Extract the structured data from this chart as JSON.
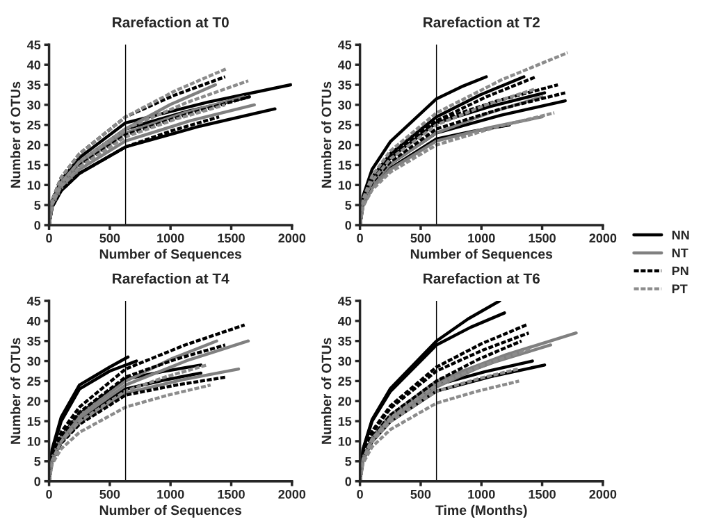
{
  "chart_data": [
    {
      "type": "line",
      "title": "Rarefaction at T0",
      "xlabel": "Number of Sequences",
      "ylabel": "Number of OTUs",
      "xlim": [
        0,
        2000
      ],
      "xticks": [
        0,
        500,
        1000,
        1500,
        2000
      ],
      "ylim": [
        0,
        45
      ],
      "yticks": [
        0,
        5,
        10,
        15,
        20,
        25,
        30,
        35,
        40,
        45
      ],
      "grid": false,
      "legend": "right",
      "ref_lines": [
        {
          "axis": "x",
          "value": 630,
          "color": "#000000"
        }
      ],
      "series": [
        {
          "name": "NN",
          "color": "#000000",
          "line_style": "solid",
          "x": [
            0,
            25,
            100,
            250,
            630,
            1310,
            1990
          ],
          "values": [
            0,
            5.9,
            11.2,
            16.8,
            25.5,
            30.7,
            35
          ]
        },
        {
          "color": "#000000",
          "line_style": "solid",
          "x": [
            0,
            25,
            100,
            250,
            630,
            1245,
            1860
          ],
          "values": [
            0,
            4.5,
            8.6,
            12.9,
            19.5,
            24.7,
            29
          ]
        },
        {
          "color": "#000000",
          "line_style": "solid",
          "x": [
            0,
            25,
            100,
            250,
            630,
            1140,
            1650
          ],
          "values": [
            0,
            5.5,
            10.6,
            15.8,
            24,
            28.4,
            32
          ]
        },
        {
          "name": "NT",
          "color": "#808080",
          "line_style": "solid",
          "x": [
            0,
            25,
            100,
            250,
            630,
            1000,
            1370
          ],
          "values": [
            0,
            5.5,
            10.6,
            15.8,
            24,
            30.1,
            35
          ]
        },
        {
          "color": "#808080",
          "line_style": "solid",
          "x": [
            0,
            25,
            100,
            250,
            630,
            1160,
            1690
          ],
          "values": [
            0,
            4.8,
            9.2,
            13.9,
            21,
            26,
            30
          ]
        },
        {
          "color": "#808080",
          "line_style": "solid",
          "x": [
            0,
            25,
            100,
            250,
            630,
            1115,
            1600
          ],
          "values": [
            0,
            5.3,
            10.1,
            15.2,
            23,
            28,
            32
          ]
        },
        {
          "name": "PN",
          "color": "#000000",
          "line_style": "dashed",
          "x": [
            0,
            25,
            100,
            250,
            630,
            1040,
            1450
          ],
          "values": [
            0,
            6.2,
            11.9,
            17.8,
            27,
            32.5,
            37
          ]
        },
        {
          "color": "#000000",
          "line_style": "dashed",
          "x": [
            0,
            25,
            100,
            250,
            630,
            1140,
            1650
          ],
          "values": [
            0,
            5.2,
            9.9,
            14.9,
            22.5,
            27.7,
            32
          ]
        },
        {
          "color": "#000000",
          "line_style": "dashed",
          "x": [
            0,
            25,
            100,
            250,
            630,
            1015,
            1400
          ],
          "values": [
            0,
            4.5,
            8.6,
            12.9,
            19.5,
            23.6,
            27
          ]
        },
        {
          "name": "PT",
          "color": "#8c8c8c",
          "line_style": "dashed",
          "x": [
            0,
            25,
            100,
            250,
            630,
            1045,
            1460
          ],
          "values": [
            0,
            6.2,
            11.9,
            17.8,
            27,
            33.6,
            39
          ]
        },
        {
          "color": "#8c8c8c",
          "line_style": "dashed",
          "x": [
            0,
            25,
            100,
            250,
            630,
            1135,
            1640
          ],
          "values": [
            0,
            5.5,
            10.6,
            15.8,
            24,
            30.6,
            36
          ]
        },
        {
          "color": "#8c8c8c",
          "line_style": "dashed",
          "x": [
            0,
            25,
            100,
            250,
            630,
            1040,
            1450
          ],
          "values": [
            0,
            5.1,
            9.7,
            14.5,
            22,
            26.4,
            30
          ]
        }
      ]
    },
    {
      "type": "line",
      "title": "Rarefaction at T2",
      "xlabel": "Number of Sequences",
      "ylabel": "Number of OTUs",
      "xlim": [
        0,
        2000
      ],
      "xticks": [
        0,
        500,
        1000,
        1500,
        2000
      ],
      "ylim": [
        0,
        45
      ],
      "yticks": [
        0,
        5,
        10,
        15,
        20,
        25,
        30,
        35,
        40,
        45
      ],
      "grid": false,
      "ref_lines": [
        {
          "axis": "x",
          "value": 630,
          "color": "#000000"
        }
      ],
      "series": [
        {
          "color": "#000000",
          "line_style": "solid",
          "x": [
            0,
            25,
            100,
            250,
            630,
            835,
            1040
          ],
          "values": [
            0,
            7.2,
            13.9,
            20.8,
            31.5,
            34.5,
            37
          ]
        },
        {
          "color": "#000000",
          "line_style": "solid",
          "x": [
            0,
            25,
            100,
            250,
            630,
            990,
            1350
          ],
          "values": [
            0,
            6.2,
            11.9,
            17.8,
            27,
            32.5,
            37
          ]
        },
        {
          "color": "#000000",
          "line_style": "solid",
          "x": [
            0,
            25,
            100,
            250,
            630,
            1160,
            1690
          ],
          "values": [
            0,
            5.3,
            10.1,
            15.2,
            23,
            27.4,
            31
          ]
        },
        {
          "color": "#000000",
          "line_style": "solid",
          "x": [
            0,
            25,
            100,
            250,
            630,
            930,
            1230
          ],
          "values": [
            0,
            4.9,
            9.5,
            14.2,
            21.5,
            23.4,
            25
          ]
        },
        {
          "color": "#000000",
          "line_style": "solid",
          "x": [
            0,
            25,
            100,
            250,
            630,
            1075,
            1520
          ],
          "values": [
            0,
            5.9,
            11.2,
            16.8,
            25.5,
            29.6,
            33
          ]
        },
        {
          "color": "#808080",
          "line_style": "solid",
          "x": [
            0,
            25,
            100,
            250,
            630,
            1065,
            1500
          ],
          "values": [
            0,
            4.8,
            9.2,
            13.9,
            21,
            24.3,
            27
          ]
        },
        {
          "color": "#808080",
          "line_style": "solid",
          "x": [
            0,
            25,
            100,
            250,
            630,
            1065,
            1500
          ],
          "values": [
            0,
            5.3,
            10.1,
            15.2,
            23,
            28,
            32
          ]
        },
        {
          "color": "#000000",
          "line_style": "dashed",
          "x": [
            0,
            25,
            100,
            250,
            630,
            1040,
            1450
          ],
          "values": [
            0,
            6,
            11.4,
            17.2,
            26,
            32,
            37
          ]
        },
        {
          "color": "#000000",
          "line_style": "dashed",
          "x": [
            0,
            25,
            100,
            250,
            630,
            1130,
            1630
          ],
          "values": [
            0,
            6,
            11.4,
            17.2,
            26,
            31,
            35
          ]
        },
        {
          "color": "#000000",
          "line_style": "dashed",
          "x": [
            0,
            25,
            100,
            250,
            630,
            1160,
            1690
          ],
          "values": [
            0,
            5.5,
            10.6,
            15.8,
            24,
            29,
            33
          ]
        },
        {
          "color": "#8c8c8c",
          "line_style": "dashed",
          "x": [
            0,
            25,
            100,
            250,
            630,
            1170,
            1710
          ],
          "values": [
            0,
            6.4,
            12.3,
            18.5,
            28,
            36.3,
            43
          ]
        },
        {
          "color": "#8c8c8c",
          "line_style": "dashed",
          "x": [
            0,
            25,
            100,
            250,
            630,
            1115,
            1600
          ],
          "values": [
            0,
            4.6,
            8.8,
            13.2,
            20,
            24.4,
            28
          ]
        },
        {
          "color": "#8c8c8c",
          "line_style": "dashed",
          "x": [
            0,
            25,
            100,
            250,
            630,
            1040,
            1450
          ],
          "values": [
            0,
            5.8,
            11,
            16.5,
            25,
            30,
            34
          ]
        }
      ]
    },
    {
      "type": "line",
      "title": "Rarefaction at T4",
      "xlabel": "Number of Sequences",
      "ylabel": "Number of OTUs",
      "xlim": [
        0,
        2000
      ],
      "xticks": [
        0,
        500,
        1000,
        1500,
        2000
      ],
      "ylim": [
        0,
        45
      ],
      "yticks": [
        0,
        5,
        10,
        15,
        20,
        25,
        30,
        35,
        40,
        45
      ],
      "grid": false,
      "ref_lines": [
        {
          "axis": "x",
          "value": 630,
          "color": "#000000"
        }
      ],
      "series": [
        {
          "color": "#000000",
          "line_style": "solid",
          "x": [
            0,
            25,
            100,
            250,
            500,
            650
          ],
          "values": [
            0,
            8,
            16,
            24,
            28.5,
            31
          ]
        },
        {
          "color": "#000000",
          "line_style": "solid",
          "x": [
            0,
            25,
            100,
            250,
            500,
            720
          ],
          "values": [
            0,
            7.5,
            15,
            23,
            27.5,
            30
          ]
        },
        {
          "color": "#000000",
          "line_style": "solid",
          "x": [
            0,
            25,
            100,
            250,
            630,
            940,
            1250
          ],
          "values": [
            0,
            5.9,
            11.2,
            16.8,
            25.5,
            27.4,
            29
          ]
        },
        {
          "color": "#000000",
          "line_style": "solid",
          "x": [
            0,
            25,
            100,
            250,
            630,
            940,
            1250
          ],
          "values": [
            0,
            5.3,
            10.1,
            15.2,
            23,
            25.2,
            27
          ]
        },
        {
          "color": "#808080",
          "line_style": "solid",
          "x": [
            0,
            25,
            100,
            250,
            630,
            1135,
            1640
          ],
          "values": [
            0,
            5.5,
            10.6,
            15.8,
            24,
            30.1,
            35
          ]
        },
        {
          "color": "#808080",
          "line_style": "solid",
          "x": [
            0,
            25,
            100,
            250,
            630,
            1005,
            1380
          ],
          "values": [
            0,
            5.8,
            11,
            16.5,
            25,
            30.5,
            35
          ]
        },
        {
          "color": "#808080",
          "line_style": "solid",
          "x": [
            0,
            25,
            100,
            250,
            630,
            1095,
            1560
          ],
          "values": [
            0,
            5.1,
            9.7,
            14.5,
            22,
            25.3,
            28
          ]
        },
        {
          "color": "#000000",
          "line_style": "dashed",
          "x": [
            0,
            25,
            100,
            250,
            630,
            1120,
            1610
          ],
          "values": [
            0,
            6.4,
            12.3,
            18.5,
            28,
            34,
            39
          ]
        },
        {
          "color": "#000000",
          "line_style": "dashed",
          "x": [
            0,
            25,
            100,
            250,
            630,
            1040,
            1450
          ],
          "values": [
            0,
            6,
            11.4,
            17.2,
            26,
            30.4,
            34
          ]
        },
        {
          "color": "#000000",
          "line_style": "dashed",
          "x": [
            0,
            25,
            100,
            250,
            630,
            1045,
            1460
          ],
          "values": [
            0,
            4.9,
            9.5,
            14.2,
            21.5,
            24,
            26
          ]
        },
        {
          "color": "#8c8c8c",
          "line_style": "dashed",
          "x": [
            0,
            25,
            100,
            250,
            630,
            980,
            1330
          ],
          "values": [
            0,
            4.3,
            8.1,
            12.2,
            18.5,
            21.5,
            24
          ]
        },
        {
          "color": "#8c8c8c",
          "line_style": "dashed",
          "x": [
            0,
            25,
            100,
            250,
            630,
            965,
            1300
          ],
          "values": [
            0,
            5.2,
            9.9,
            14.9,
            22.5,
            26.1,
            29
          ]
        }
      ]
    },
    {
      "type": "line",
      "title": "Rarefaction at T6",
      "xlabel": "Time (Months)",
      "ylabel": "Number of OTUs",
      "xlim": [
        0,
        2000
      ],
      "xticks": [
        0,
        500,
        1000,
        1500,
        2000
      ],
      "ylim": [
        0,
        45
      ],
      "yticks": [
        0,
        5,
        10,
        15,
        20,
        25,
        30,
        35,
        40,
        45
      ],
      "grid": false,
      "ref_lines": [
        {
          "axis": "x",
          "value": 630,
          "color": "#000000"
        }
      ],
      "series": [
        {
          "color": "#000000",
          "line_style": "solid",
          "x": [
            0,
            25,
            100,
            250,
            630,
            890,
            1150
          ],
          "values": [
            0,
            8,
            15.4,
            23.1,
            35,
            40.5,
            45
          ]
        },
        {
          "color": "#000000",
          "line_style": "solid",
          "x": [
            0,
            25,
            100,
            250,
            630,
            910,
            1190
          ],
          "values": [
            0,
            7.8,
            15,
            22.4,
            34,
            38.4,
            42
          ]
        },
        {
          "color": "#000000",
          "line_style": "solid",
          "x": [
            0,
            25,
            100,
            250,
            630,
            1025,
            1420
          ],
          "values": [
            0,
            5.5,
            10.6,
            15.8,
            24,
            27.3,
            30
          ]
        },
        {
          "color": "#000000",
          "line_style": "solid",
          "x": [
            0,
            25,
            100,
            250,
            630,
            1075,
            1520
          ],
          "values": [
            0,
            5.2,
            9.9,
            14.9,
            22.5,
            26.1,
            29
          ]
        },
        {
          "color": "#808080",
          "line_style": "solid",
          "x": [
            0,
            25,
            100,
            250,
            630,
            1205,
            1780
          ],
          "values": [
            0,
            5.8,
            11,
            16.5,
            25,
            31.6,
            37
          ]
        },
        {
          "color": "#808080",
          "line_style": "solid",
          "x": [
            0,
            25,
            100,
            250,
            630,
            1100,
            1570
          ],
          "values": [
            0,
            5.6,
            10.8,
            16.2,
            24.5,
            29.7,
            34
          ]
        },
        {
          "color": "#808080",
          "line_style": "solid",
          "x": [
            0,
            25,
            100,
            250,
            630,
            965,
            1300
          ],
          "values": [
            0,
            5.4,
            10.3,
            15.5,
            23.5,
            28.2,
            32
          ]
        },
        {
          "color": "#000000",
          "line_style": "dashed",
          "x": [
            0,
            25,
            100,
            250,
            630,
            1000,
            1370
          ],
          "values": [
            0,
            6.6,
            12.5,
            18.8,
            28.5,
            34.3,
            39
          ]
        },
        {
          "color": "#000000",
          "line_style": "dashed",
          "x": [
            0,
            25,
            100,
            250,
            630,
            1010,
            1390
          ],
          "values": [
            0,
            6.3,
            12.1,
            18.2,
            27.5,
            32.7,
            37
          ]
        },
        {
          "color": "#000000",
          "line_style": "dashed",
          "x": [
            0,
            25,
            100,
            250,
            630,
            980,
            1330
          ],
          "values": [
            0,
            5.8,
            11,
            16.5,
            25,
            30.5,
            35
          ]
        },
        {
          "color": "#8c8c8c",
          "line_style": "dashed",
          "x": [
            0,
            25,
            100,
            250,
            630,
            970,
            1310
          ],
          "values": [
            0,
            4.5,
            8.6,
            12.9,
            19.5,
            22.5,
            25
          ]
        },
        {
          "color": "#8c8c8c",
          "line_style": "dashed",
          "x": [
            0,
            25,
            100,
            250,
            630,
            965,
            1300
          ],
          "values": [
            0,
            5.2,
            9.9,
            14.9,
            22.5,
            25.5,
            28
          ]
        },
        {
          "color": "#8c8c8c",
          "line_style": "dashed",
          "x": [
            0,
            25,
            100,
            250,
            630,
            1015,
            1400
          ],
          "values": [
            0,
            5.5,
            10.6,
            15.8,
            24,
            29,
            33
          ]
        }
      ]
    }
  ]
}
